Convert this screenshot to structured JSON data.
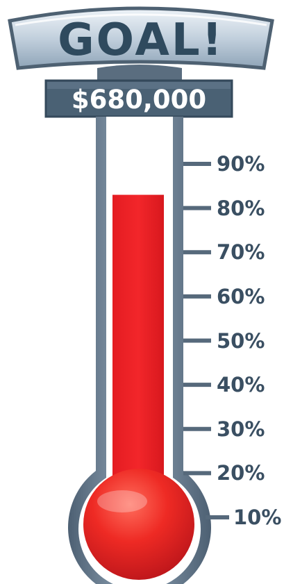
{
  "goal": {
    "title": "GOAL!",
    "amount": "$680,000"
  },
  "thermometer": {
    "progress_percent": 83,
    "fill_color": "#ee1f24",
    "frame_color": "#56697b",
    "panel_color": "#4a6174"
  },
  "scale": {
    "ticks": [
      {
        "label": "90%",
        "value": 90
      },
      {
        "label": "80%",
        "value": 80
      },
      {
        "label": "70%",
        "value": 70
      },
      {
        "label": "60%",
        "value": 60
      },
      {
        "label": "50%",
        "value": 50
      },
      {
        "label": "40%",
        "value": 40
      },
      {
        "label": "30%",
        "value": 30
      },
      {
        "label": "20%",
        "value": 20
      },
      {
        "label": "10%",
        "value": 10
      }
    ]
  }
}
